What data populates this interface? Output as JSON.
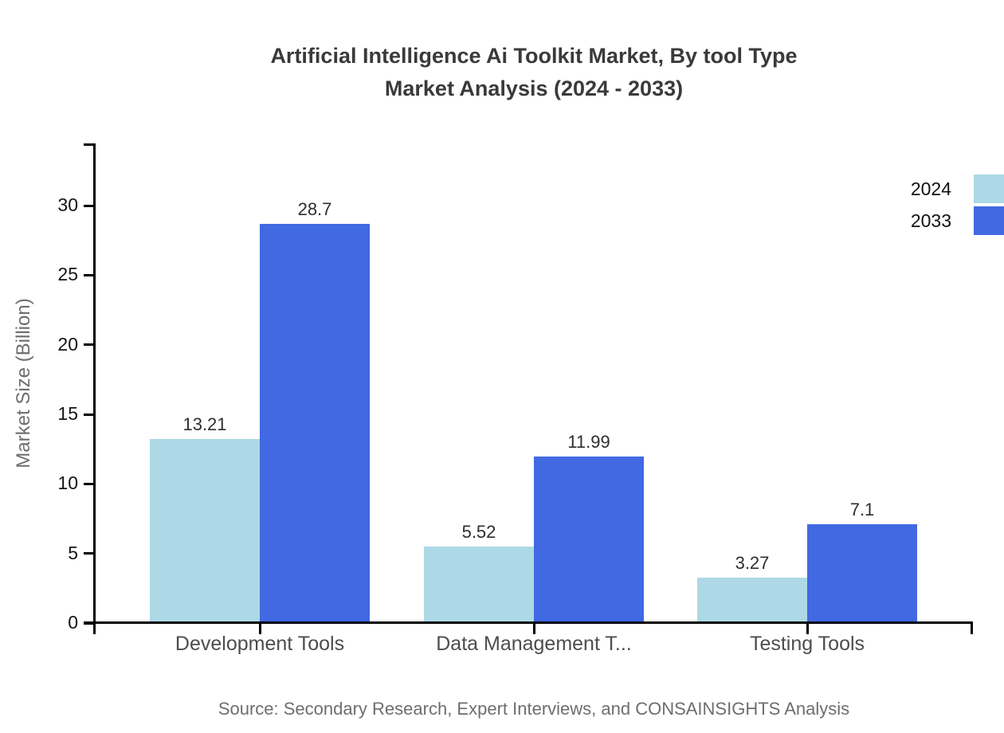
{
  "title": {
    "line1": "Artificial Intelligence Ai Toolkit Market, By tool Type",
    "line2": "Market Analysis (2024 - 2033)"
  },
  "source_note": "Source: Secondary Research, Expert Interviews, and CONSAINSIGHTS Analysis",
  "colors": {
    "series_2024": "#ADD8E6",
    "series_2033": "#4169E1",
    "axis": "#000000",
    "title_text": "#3A3A3A",
    "muted_text": "#6E6E6E"
  },
  "chart_data": {
    "type": "bar",
    "title": "Artificial Intelligence Ai Toolkit Market, By tool Type Market Analysis (2024 - 2033)",
    "categories": [
      "Development Tools",
      "Data Management T...",
      "Testing Tools"
    ],
    "series": [
      {
        "name": "2024",
        "color": "#ADD8E6",
        "values": [
          13.21,
          5.52,
          3.27
        ],
        "labels": [
          "13.21",
          "5.52",
          "3.27"
        ]
      },
      {
        "name": "2033",
        "color": "#4169E1",
        "values": [
          28.7,
          11.99,
          7.1
        ],
        "labels": [
          "28.7",
          "11.99",
          "7.1"
        ]
      }
    ],
    "xlabel": "",
    "ylabel": "Market Size (Billion)",
    "yticks": [
      0,
      5,
      10,
      15,
      20,
      25,
      30
    ],
    "ylim": [
      0,
      34.5
    ],
    "grid": false,
    "legend_position": "top-right",
    "value_labels_shown": true
  }
}
